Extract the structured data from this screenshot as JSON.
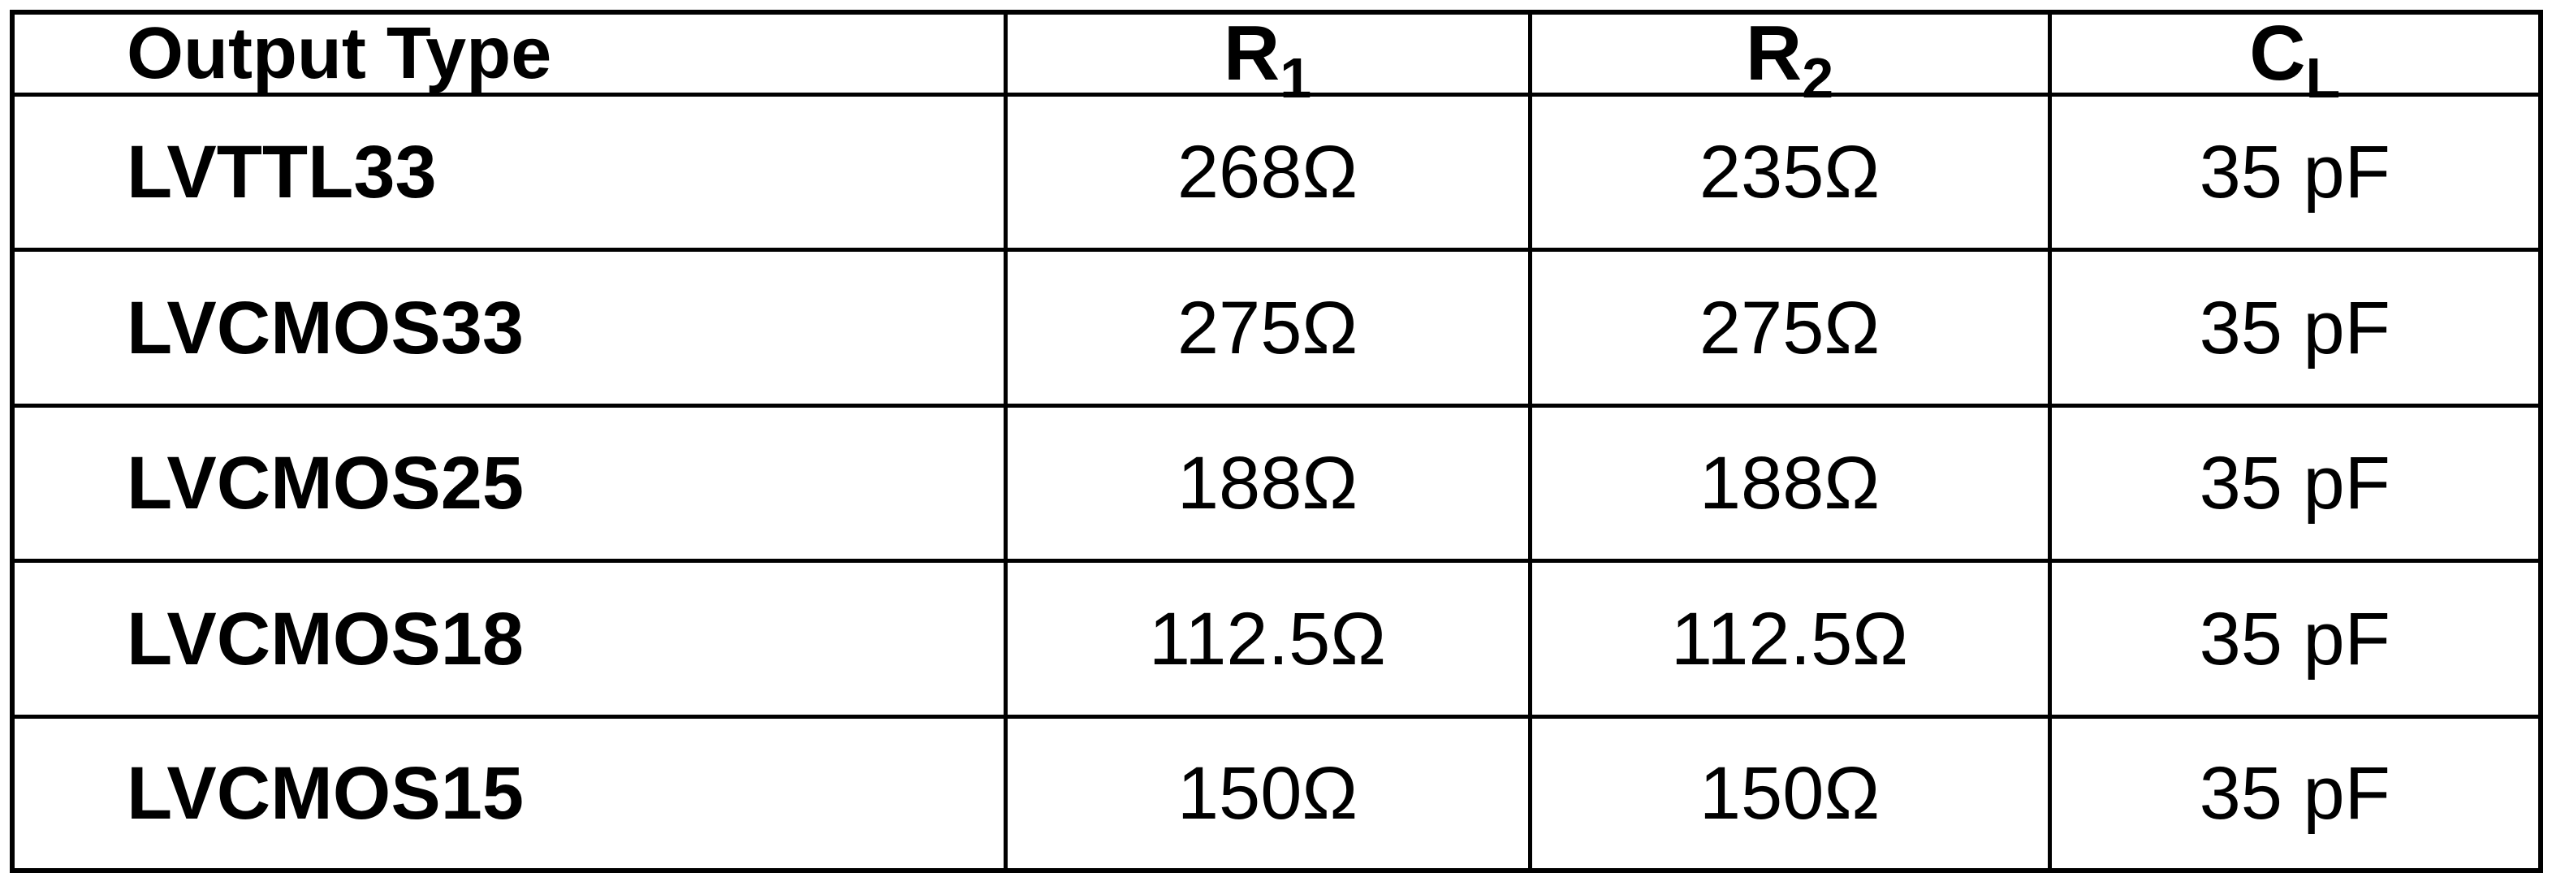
{
  "table": {
    "headers": [
      {
        "main": "Output Type",
        "sub": ""
      },
      {
        "main": "R",
        "sub": "1"
      },
      {
        "main": "R",
        "sub": "2"
      },
      {
        "main": "C",
        "sub": "L"
      }
    ],
    "rows": [
      {
        "type": "LVTTL33",
        "r1": "268Ω",
        "r2": "235Ω",
        "cl": "35 pF"
      },
      {
        "type": "LVCMOS33",
        "r1": "275Ω",
        "r2": "275Ω",
        "cl": "35 pF"
      },
      {
        "type": "LVCMOS25",
        "r1": "188Ω",
        "r2": "188Ω",
        "cl": "35 pF"
      },
      {
        "type": "LVCMOS18",
        "r1": "112.5Ω",
        "r2": "112.5Ω",
        "cl": "35 pF"
      },
      {
        "type": "LVCMOS15",
        "r1": "150Ω",
        "r2": "150Ω",
        "cl": "35 pF"
      }
    ]
  }
}
